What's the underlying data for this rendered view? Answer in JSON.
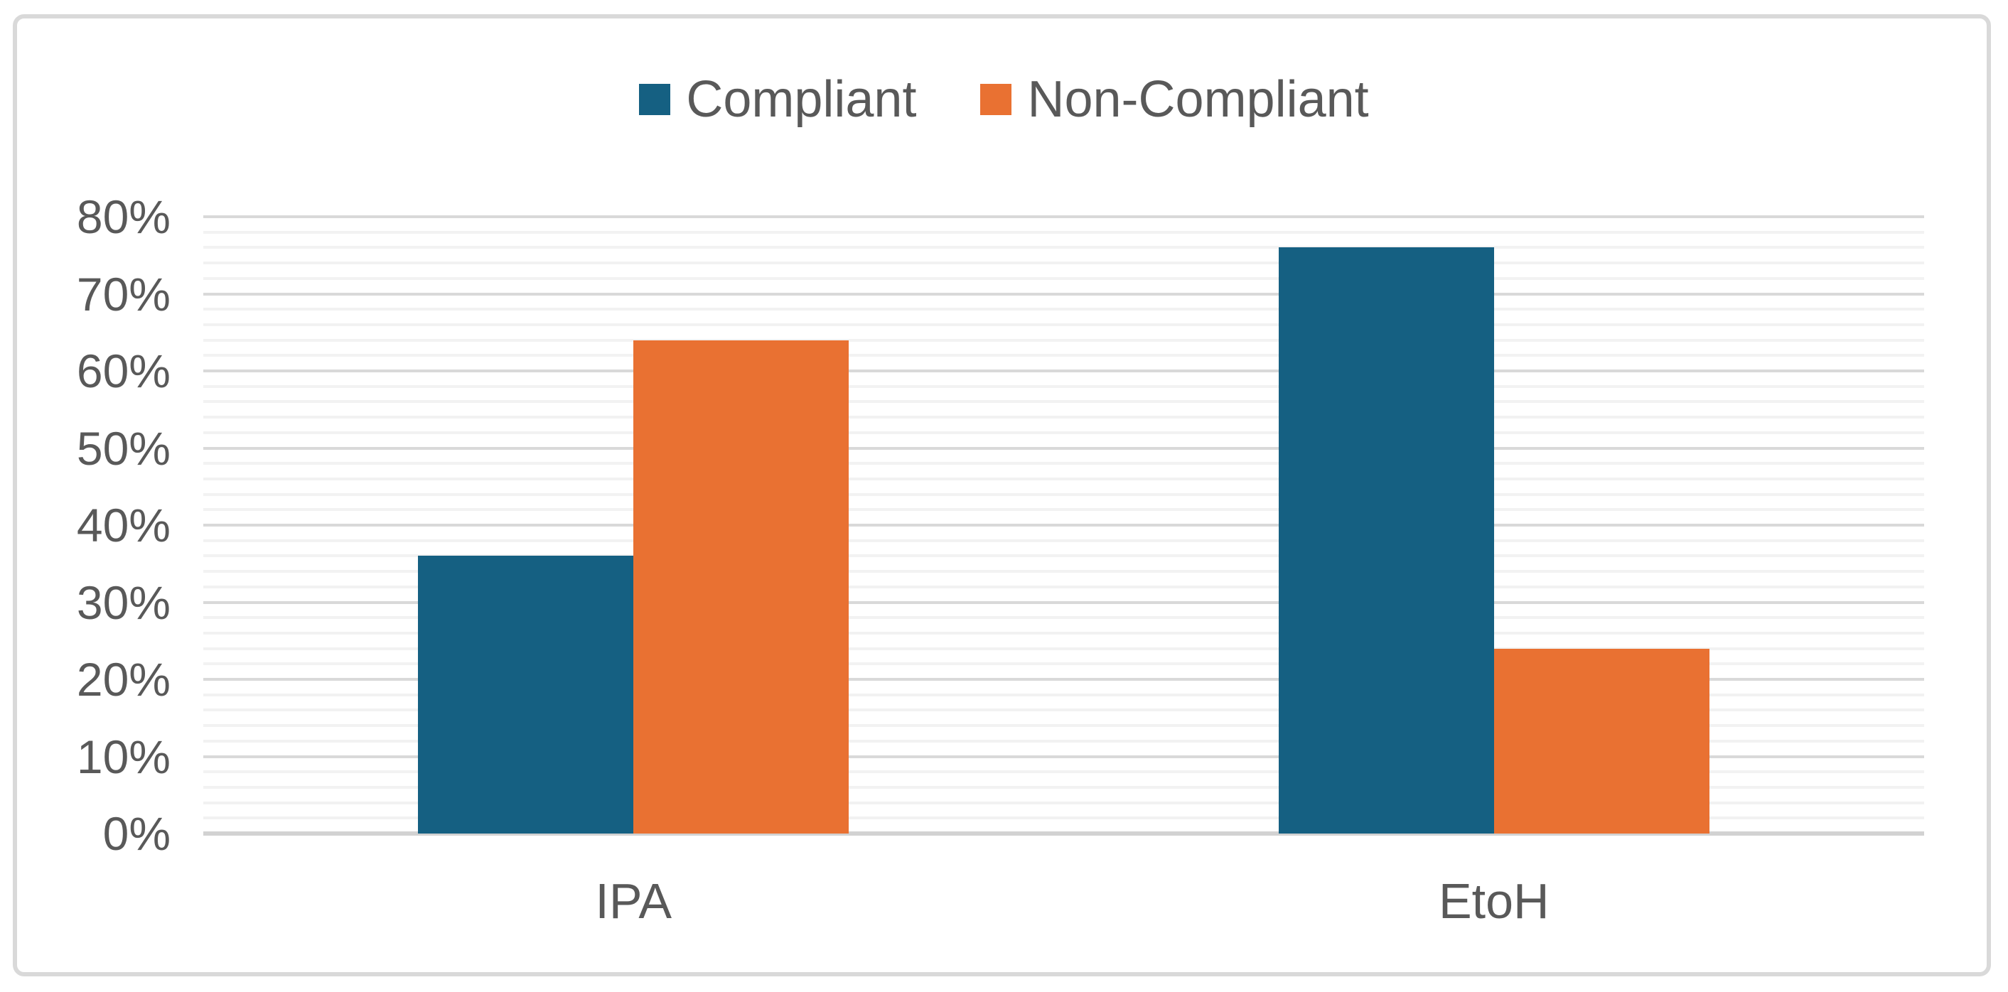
{
  "figure": {
    "background_color": "#ffffff",
    "border_color": "#d9d9d9",
    "text_color": "#595959"
  },
  "legend": {
    "position": "top-center",
    "items": [
      {
        "label": "Compliant",
        "color": "#156082"
      },
      {
        "label": "Non-Compliant",
        "color": "#e97132"
      }
    ]
  },
  "chart_data": {
    "type": "bar",
    "title": "",
    "xlabel": "",
    "ylabel": "",
    "categories": [
      "IPA",
      "EtoH"
    ],
    "series": [
      {
        "name": "Compliant",
        "color": "#156082",
        "values": [
          36,
          76
        ]
      },
      {
        "name": "Non-Compliant",
        "color": "#e97132",
        "values": [
          64,
          24
        ]
      }
    ],
    "value_unit": "percent",
    "y_axis": {
      "min": 0,
      "max": 80,
      "major_unit": 10,
      "minor_unit": 2,
      "tick_labels": [
        "0%",
        "10%",
        "20%",
        "30%",
        "40%",
        "50%",
        "60%",
        "70%",
        "80%"
      ]
    },
    "grid": {
      "major_color": "#d9d9d9",
      "minor_color": "#f2f2f2",
      "axis_line_color": "#d2d2d2",
      "major_on": true,
      "minor_on": true
    },
    "legend_position": "top",
    "bar_gap_note": "two touching bars per category, pair centered in category band"
  }
}
